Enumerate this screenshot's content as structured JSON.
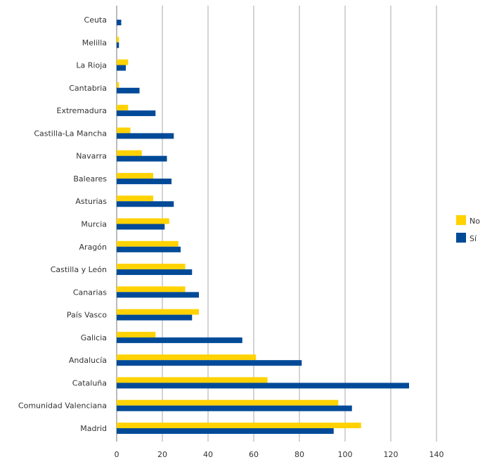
{
  "chart_data": {
    "type": "bar",
    "orientation": "horizontal",
    "title": "",
    "xlabel": "",
    "ylabel": "",
    "xlim": [
      0,
      140
    ],
    "xticks": [
      0,
      20,
      40,
      60,
      80,
      100,
      120,
      140
    ],
    "grid": true,
    "legend_position": "right",
    "categories": [
      "Ceuta",
      "Melilla",
      "La Rioja",
      "Cantabria",
      "Extremadura",
      "Castilla-La Mancha",
      "Navarra",
      "Baleares",
      "Asturias",
      "Murcia",
      "Aragón",
      "Castilla y León",
      "Canarias",
      "País Vasco",
      "Galicia",
      "Andalucía",
      "Cataluña",
      "Comunidad Valenciana",
      "Madrid"
    ],
    "series": [
      {
        "name": "No",
        "color": "#FFD200",
        "values": [
          0,
          1,
          5,
          1,
          5,
          6,
          11,
          16,
          16,
          23,
          27,
          30,
          30,
          36,
          17,
          61,
          66,
          97,
          107
        ]
      },
      {
        "name": "Sí",
        "color": "#004A98",
        "values": [
          2,
          1,
          4,
          10,
          17,
          25,
          22,
          24,
          25,
          21,
          28,
          33,
          36,
          33,
          55,
          81,
          128,
          103,
          95
        ]
      }
    ]
  }
}
